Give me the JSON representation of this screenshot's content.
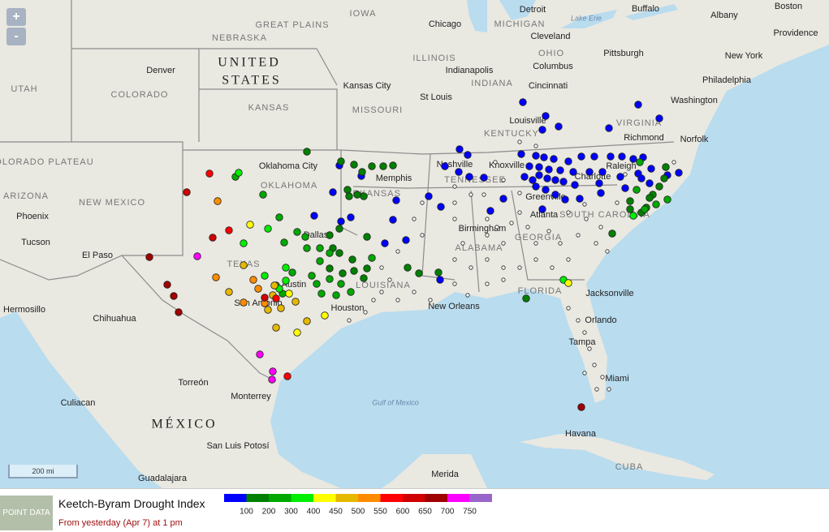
{
  "map": {
    "zoom_in": "+",
    "zoom_out": "-",
    "scale": "200 mi",
    "labels": [
      "GREAT PLAINS",
      "NEBRASKA",
      "IOWA",
      "Chicago",
      "Detroit",
      "Lake Erie",
      "Buffalo",
      "Albany",
      "Boston",
      "Providence",
      "MICHIGAN",
      "Cleveland",
      "New York",
      "UNITED",
      "STATES",
      "Denver",
      "ILLINOIS",
      "OHIO",
      "Pittsburgh",
      "Indianapolis",
      "Columbus",
      "Philadelphia",
      "UTAH",
      "COLORADO",
      "INDIANA",
      "Kansas City",
      "Cincinnati",
      "St Louis",
      "Washington",
      "KANSAS",
      "MISSOURI",
      "Louisville",
      "VIRGINIA",
      "KENTUCKY",
      "Richmond",
      "Norfolk",
      "COLORADO PLATEAU",
      "Oklahoma City",
      "Memphis",
      "Nashville",
      "Knoxville",
      "Raleigh",
      "OKLAHOMA",
      "ARKANSAS",
      "TENNESSEE",
      "Charlotte",
      "ARIZONA",
      "NEW MEXICO",
      "Greenville",
      "Atlanta",
      "SOUTH CAROLINA",
      "Phoenix",
      "Birmingham",
      "Dallas",
      "GEORGIA",
      "Tucson",
      "ALABAMA",
      "El Paso",
      "TEXAS",
      "Austin",
      "LOUISIANA",
      "FLORIDA",
      "Jacksonville",
      "Hermosillo",
      "San Antonio",
      "Houston",
      "New Orleans",
      "Chihuahua",
      "Orlando",
      "Tampa",
      "Torreón",
      "Miami",
      "Gulf of Mexico",
      "Monterrey",
      "Culiacan",
      "MÉXICO",
      "Havana",
      "San Luis Potosí",
      "CUBA",
      "Merida",
      "Guadalajara"
    ]
  },
  "legend": {
    "button": "POINT DATA",
    "title": "Keetch-Byram Drought Index",
    "subtitle": "From yesterday (Apr 7) at 1 pm",
    "colors": [
      "#0000ff",
      "#008000",
      "#00a800",
      "#00ee00",
      "#ffff00",
      "#e6b800",
      "#ff8c00",
      "#ff0000",
      "#d00000",
      "#a00000",
      "#ff00ff",
      "#9966cc"
    ],
    "labels": [
      100,
      200,
      300,
      400,
      450,
      500,
      550,
      600,
      650,
      700,
      750
    ]
  }
}
